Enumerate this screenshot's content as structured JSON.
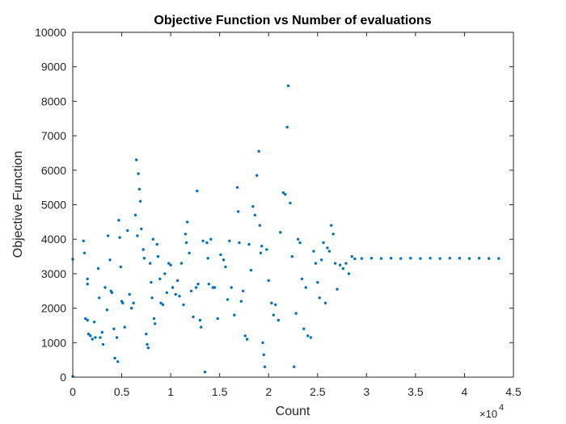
{
  "chart_data": {
    "type": "scatter",
    "title": "Objective Function vs Number of evaluations",
    "xlabel": "Count",
    "ylabel": "Objective Function",
    "x_exponent_label": "×10",
    "x_exponent_power": "4",
    "xlim": [
      0,
      45000
    ],
    "ylim": [
      0,
      10000
    ],
    "grid": false,
    "x_ticks": [
      0,
      5000,
      10000,
      15000,
      20000,
      25000,
      30000,
      35000,
      40000,
      45000
    ],
    "x_tick_labels": [
      "0",
      "0.5",
      "1",
      "1.5",
      "2",
      "2.5",
      "3",
      "3.5",
      "4",
      "4.5"
    ],
    "y_ticks": [
      0,
      1000,
      2000,
      3000,
      4000,
      5000,
      6000,
      7000,
      8000,
      9000,
      10000
    ],
    "y_tick_labels": [
      "0",
      "1000",
      "2000",
      "3000",
      "4000",
      "5000",
      "6000",
      "7000",
      "8000",
      "9000",
      "10000"
    ],
    "marker_color": "#0072BD",
    "series": [
      {
        "points": [
          [
            0,
            3420
          ],
          [
            0,
            20
          ],
          [
            1100,
            3950
          ],
          [
            1200,
            3600
          ],
          [
            1300,
            1700
          ],
          [
            1500,
            2850
          ],
          [
            1500,
            2700
          ],
          [
            1500,
            1650
          ],
          [
            1600,
            1250
          ],
          [
            1800,
            1200
          ],
          [
            2000,
            1100
          ],
          [
            2200,
            1600
          ],
          [
            2300,
            1150
          ],
          [
            2600,
            3150
          ],
          [
            2700,
            2300
          ],
          [
            2800,
            1150
          ],
          [
            3000,
            1300
          ],
          [
            3100,
            950
          ],
          [
            3300,
            2600
          ],
          [
            3500,
            1950
          ],
          [
            3600,
            4100
          ],
          [
            3800,
            3400
          ],
          [
            3900,
            2500
          ],
          [
            4000,
            2450
          ],
          [
            4200,
            1400
          ],
          [
            4300,
            550
          ],
          [
            4500,
            1150
          ],
          [
            4600,
            450
          ],
          [
            4700,
            4550
          ],
          [
            4800,
            4050
          ],
          [
            4900,
            3200
          ],
          [
            5000,
            2200
          ],
          [
            5100,
            2150
          ],
          [
            5300,
            1450
          ],
          [
            5600,
            4250
          ],
          [
            5800,
            2400
          ],
          [
            6000,
            2000
          ],
          [
            6200,
            2150
          ],
          [
            6400,
            4700
          ],
          [
            6500,
            6300
          ],
          [
            6600,
            4100
          ],
          [
            6700,
            5900
          ],
          [
            6800,
            5450
          ],
          [
            6900,
            5100
          ],
          [
            7000,
            4300
          ],
          [
            7200,
            3700
          ],
          [
            7300,
            3450
          ],
          [
            7500,
            1250
          ],
          [
            7600,
            950
          ],
          [
            7700,
            850
          ],
          [
            7900,
            3300
          ],
          [
            8000,
            2750
          ],
          [
            8100,
            2300
          ],
          [
            8200,
            4000
          ],
          [
            8300,
            1700
          ],
          [
            8400,
            1550
          ],
          [
            8600,
            3850
          ],
          [
            8700,
            3500
          ],
          [
            8900,
            2850
          ],
          [
            9000,
            2150
          ],
          [
            9200,
            2100
          ],
          [
            9400,
            3000
          ],
          [
            9600,
            2450
          ],
          [
            9800,
            3300
          ],
          [
            10000,
            3250
          ],
          [
            10200,
            2600
          ],
          [
            10500,
            2400
          ],
          [
            10700,
            2800
          ],
          [
            10900,
            2350
          ],
          [
            11100,
            3300
          ],
          [
            11300,
            2100
          ],
          [
            11500,
            4150
          ],
          [
            11600,
            3900
          ],
          [
            11700,
            4500
          ],
          [
            11900,
            3600
          ],
          [
            12100,
            2500
          ],
          [
            12300,
            1750
          ],
          [
            12600,
            2600
          ],
          [
            12700,
            5400
          ],
          [
            12800,
            2700
          ],
          [
            13000,
            1650
          ],
          [
            13100,
            1450
          ],
          [
            13300,
            3950
          ],
          [
            13500,
            150
          ],
          [
            13700,
            3900
          ],
          [
            13800,
            3450
          ],
          [
            13900,
            2700
          ],
          [
            14100,
            4000
          ],
          [
            14300,
            2600
          ],
          [
            14500,
            2600
          ],
          [
            14800,
            1700
          ],
          [
            15100,
            3550
          ],
          [
            15400,
            3400
          ],
          [
            15600,
            3200
          ],
          [
            15800,
            2250
          ],
          [
            16000,
            3950
          ],
          [
            16200,
            2600
          ],
          [
            16500,
            1800
          ],
          [
            16800,
            5500
          ],
          [
            16900,
            4800
          ],
          [
            17000,
            3900
          ],
          [
            17200,
            2200
          ],
          [
            17400,
            2500
          ],
          [
            17600,
            1200
          ],
          [
            17800,
            1100
          ],
          [
            18000,
            3850
          ],
          [
            18200,
            3100
          ],
          [
            18400,
            4950
          ],
          [
            18600,
            4700
          ],
          [
            18800,
            5850
          ],
          [
            19000,
            6550
          ],
          [
            19100,
            4400
          ],
          [
            19200,
            3600
          ],
          [
            19300,
            3800
          ],
          [
            19400,
            1000
          ],
          [
            19500,
            650
          ],
          [
            19600,
            300
          ],
          [
            19800,
            3700
          ],
          [
            20000,
            2800
          ],
          [
            20300,
            2150
          ],
          [
            20500,
            1800
          ],
          [
            20700,
            2100
          ],
          [
            21000,
            1650
          ],
          [
            21200,
            4200
          ],
          [
            21500,
            5350
          ],
          [
            21700,
            5300
          ],
          [
            21900,
            7250
          ],
          [
            22000,
            8450
          ],
          [
            22200,
            5050
          ],
          [
            22400,
            3500
          ],
          [
            22600,
            300
          ],
          [
            22800,
            1850
          ],
          [
            23000,
            4000
          ],
          [
            23200,
            3900
          ],
          [
            23400,
            2850
          ],
          [
            23600,
            1400
          ],
          [
            23800,
            2600
          ],
          [
            24000,
            1200
          ],
          [
            24300,
            1150
          ],
          [
            24600,
            3650
          ],
          [
            24800,
            3300
          ],
          [
            25000,
            2750
          ],
          [
            25200,
            2300
          ],
          [
            25400,
            3400
          ],
          [
            25600,
            3900
          ],
          [
            25800,
            2150
          ],
          [
            26000,
            3750
          ],
          [
            26200,
            3650
          ],
          [
            26400,
            4400
          ],
          [
            26600,
            4150
          ],
          [
            26800,
            3300
          ],
          [
            27000,
            2550
          ],
          [
            27300,
            3250
          ],
          [
            27600,
            3150
          ],
          [
            27900,
            3300
          ],
          [
            28200,
            3000
          ],
          [
            28500,
            3500
          ],
          [
            28800,
            3430
          ],
          [
            29500,
            3440
          ],
          [
            30500,
            3450
          ],
          [
            31500,
            3440
          ],
          [
            32500,
            3450
          ],
          [
            33500,
            3440
          ],
          [
            34500,
            3450
          ],
          [
            35500,
            3440
          ],
          [
            36500,
            3450
          ],
          [
            37500,
            3440
          ],
          [
            38500,
            3450
          ],
          [
            39500,
            3450
          ],
          [
            40500,
            3440
          ],
          [
            41500,
            3450
          ],
          [
            42500,
            3440
          ],
          [
            43500,
            3440
          ]
        ]
      }
    ]
  }
}
